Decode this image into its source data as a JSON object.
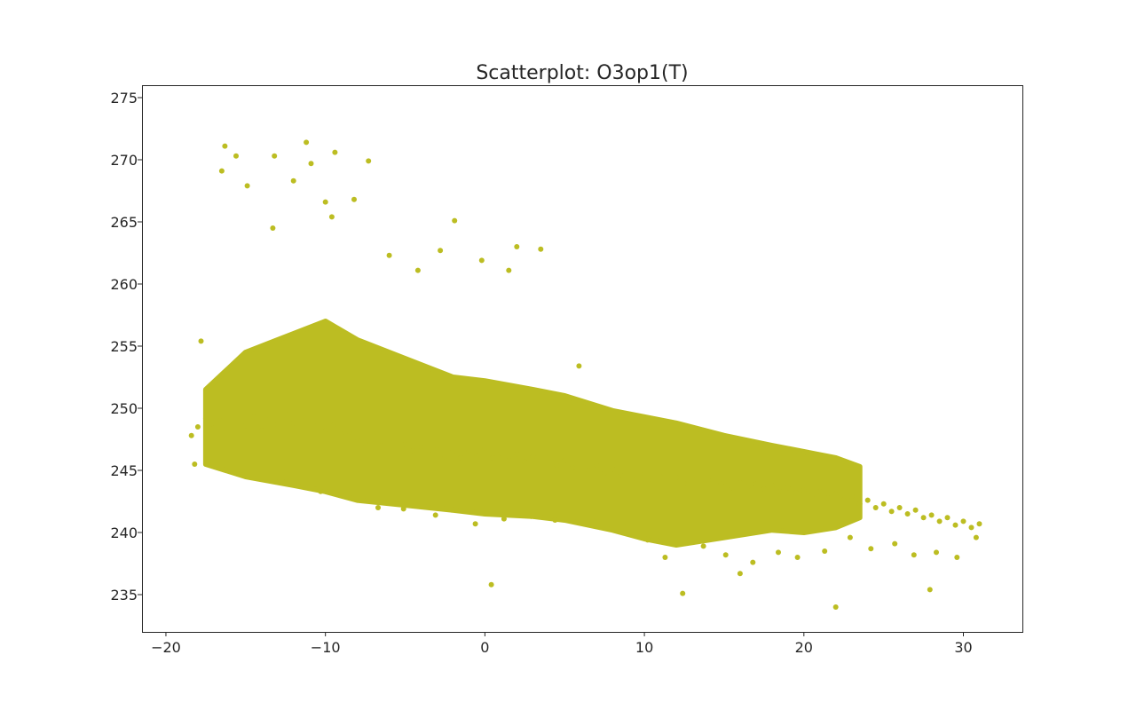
{
  "chart_data": {
    "type": "scatter",
    "title": "Scatterplot: O3op1(T)",
    "xlabel": "",
    "ylabel": "",
    "xlim": [
      -21.5,
      33.7
    ],
    "ylim": [
      232.0,
      276.0
    ],
    "xticks": [
      -20,
      -10,
      0,
      10,
      20,
      30
    ],
    "xtick_labels": [
      "−20",
      "−10",
      "0",
      "10",
      "20",
      "30"
    ],
    "yticks": [
      235,
      240,
      245,
      250,
      255,
      260,
      265,
      270,
      275
    ],
    "ytick_labels": [
      "235",
      "240",
      "245",
      "250",
      "255",
      "260",
      "265",
      "270",
      "275"
    ],
    "grid": false,
    "legend": "none",
    "marker_color": "#bcbd22",
    "series": [
      {
        "x": [
          -18.4,
          -18.0,
          -17.5,
          -17.0,
          -16.6,
          -16.2,
          -15.6,
          -15.0,
          -14.5,
          -14.0,
          -13.5,
          -13.0,
          -12.5,
          -12.0,
          -11.5,
          -11.0,
          -10.5,
          -10.0,
          -9.5,
          -9.0,
          -8.5,
          -8.0,
          -7.5,
          -7.0,
          -6.5,
          -6.0,
          -5.5,
          -5.0,
          -4.5,
          -4.0,
          -3.5,
          -3.0,
          -2.5,
          -2.0,
          -1.5,
          -1.0,
          -0.5,
          0.0,
          0.5,
          1.0,
          1.5,
          2.0,
          2.5,
          3.0,
          3.5,
          4.0,
          4.5,
          5.0,
          5.5,
          6.0,
          6.5,
          7.0,
          7.5,
          8.0,
          8.5,
          9.0,
          9.5,
          10.0,
          10.5,
          11.0,
          11.5,
          12.0,
          12.5,
          13.0,
          13.5,
          14.0,
          14.5,
          15.0,
          15.5,
          16.0,
          16.5,
          17.0,
          17.5,
          18.0,
          18.5,
          19.0,
          19.5,
          20.0,
          20.5,
          21.0,
          21.5,
          22.0,
          22.5,
          23.0,
          23.5,
          24.0,
          24.5,
          25.0,
          25.5,
          26.0,
          26.5,
          27.0,
          27.5,
          28.0,
          28.5,
          29.0,
          29.5,
          30.0,
          30.5,
          31.0,
          -16.3,
          -15.6,
          -11.2,
          -10.9,
          -9.4,
          -7.3,
          -13.2,
          -12.0,
          -8.2,
          -13.3,
          -10.0,
          -14.9,
          -16.5,
          -9.6,
          -6.0,
          -4.2,
          -1.9,
          -0.2,
          2.0,
          3.5,
          1.5,
          -2.8,
          5.9,
          0.4,
          12.4,
          16.0,
          22.0,
          27.9,
          -17.8,
          -18.2,
          -15.2,
          -12.7,
          -10.3,
          -6.7,
          -5.1,
          -3.1,
          -0.6,
          1.2,
          2.9,
          4.4,
          6.8,
          8.9,
          10.2,
          11.3,
          13.7,
          15.1,
          16.8,
          18.4,
          19.6,
          21.3,
          22.9,
          24.2,
          25.7,
          26.9,
          28.3,
          29.6,
          30.8
        ],
        "y": [
          247.8,
          248.5,
          249.2,
          248.4,
          249.0,
          248.1,
          247.5,
          248.6,
          249.3,
          248.2,
          249.1,
          248.7,
          249.5,
          248.8,
          249.0,
          248.4,
          248.9,
          248.2,
          248.6,
          247.9,
          248.1,
          247.6,
          247.2,
          247.9,
          247.0,
          247.4,
          246.8,
          247.1,
          246.6,
          246.9,
          246.3,
          246.7,
          246.1,
          246.5,
          246.0,
          246.6,
          246.2,
          246.8,
          246.0,
          246.4,
          245.8,
          246.3,
          245.7,
          246.1,
          245.5,
          246.0,
          245.4,
          245.8,
          245.2,
          245.6,
          245.0,
          245.4,
          244.8,
          245.1,
          244.6,
          244.9,
          244.3,
          244.7,
          244.2,
          244.5,
          244.0,
          244.4,
          243.9,
          244.3,
          244.0,
          244.2,
          243.8,
          244.1,
          243.6,
          244.0,
          243.7,
          243.9,
          243.5,
          243.8,
          243.3,
          243.6,
          243.2,
          243.4,
          243.0,
          243.3,
          242.8,
          243.1,
          242.6,
          242.9,
          242.3,
          242.6,
          242.0,
          242.3,
          241.7,
          242.0,
          241.5,
          241.8,
          241.2,
          241.4,
          240.9,
          241.2,
          240.6,
          240.9,
          240.4,
          240.7,
          271.1,
          270.3,
          271.4,
          269.7,
          270.6,
          269.9,
          270.3,
          268.3,
          266.8,
          264.5,
          266.6,
          267.9,
          269.1,
          265.4,
          262.3,
          261.1,
          265.1,
          261.9,
          263.0,
          262.8,
          261.1,
          262.7,
          253.4,
          235.8,
          235.1,
          236.7,
          234.0,
          235.4,
          255.4,
          245.5,
          244.6,
          244.1,
          243.3,
          242.0,
          241.9,
          241.4,
          240.7,
          241.1,
          241.3,
          241.0,
          240.9,
          240.5,
          239.4,
          238.0,
          238.9,
          238.2,
          237.6,
          238.4,
          238.0,
          238.5,
          239.6,
          238.7,
          239.1,
          238.2,
          238.4,
          238.0,
          239.6
        ]
      }
    ]
  }
}
